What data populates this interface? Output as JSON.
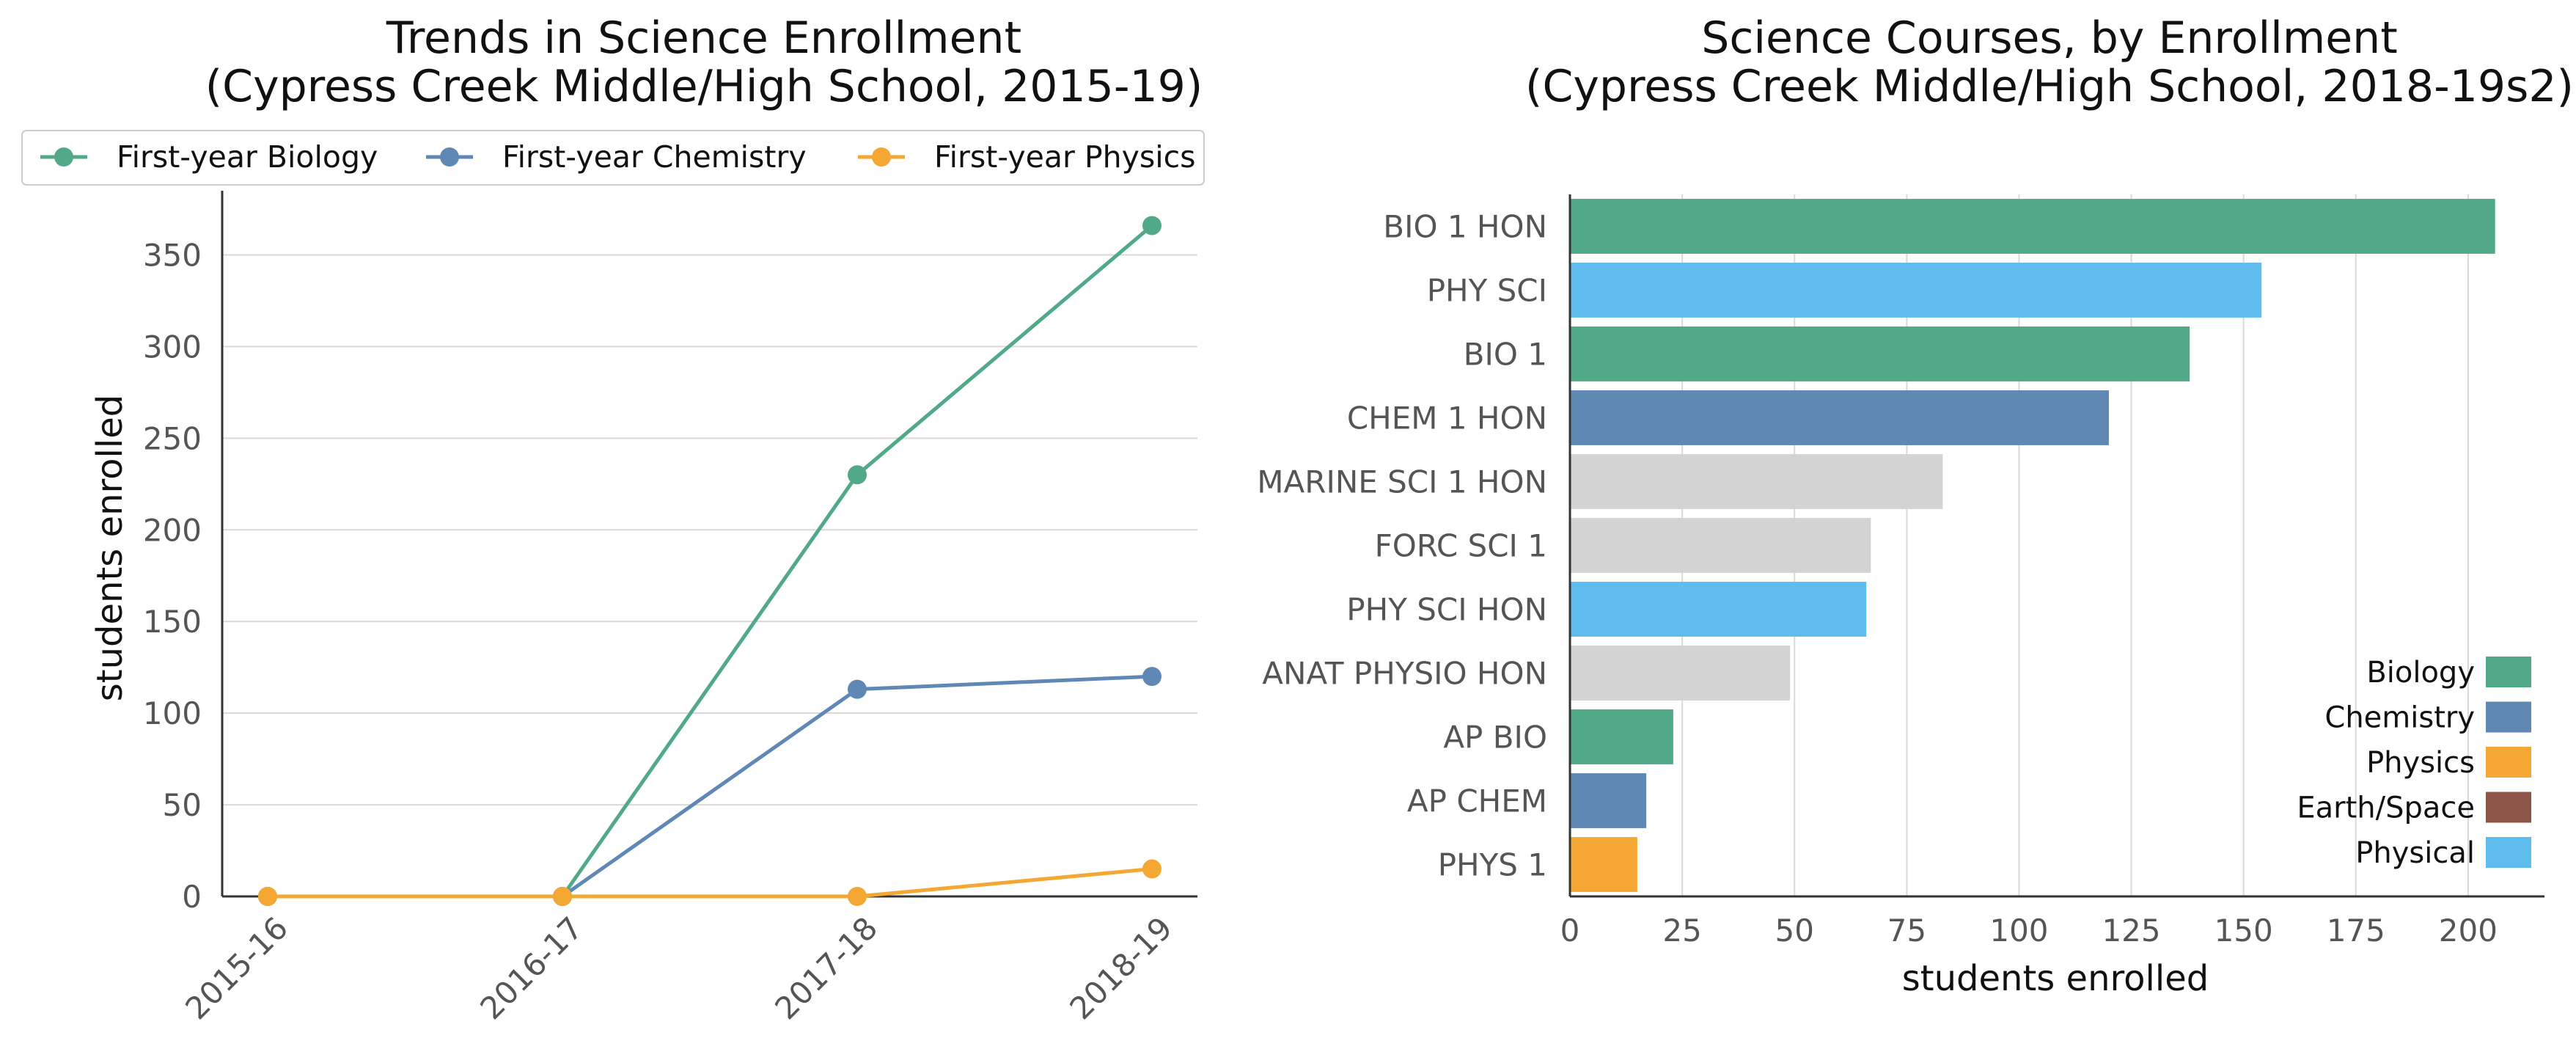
{
  "chart_data": [
    {
      "type": "line",
      "title": "Trends in Science Enrollment",
      "subtitle": "(Cypress Creek Middle/High School, 2015-19)",
      "xlabel": "",
      "ylabel": "students enrolled",
      "categories": [
        "2015-16",
        "2016-17",
        "2017-18",
        "2018-19"
      ],
      "ylim": [
        0,
        385
      ],
      "yticks": [
        0,
        50,
        100,
        150,
        200,
        250,
        300,
        350
      ],
      "grid": "horizontal",
      "legend": "top",
      "series": [
        {
          "name": "First-year Biology",
          "color": "#52a987",
          "values": [
            0,
            0,
            230,
            366
          ]
        },
        {
          "name": "First-year Chemistry",
          "color": "#6088b4",
          "values": [
            0,
            0,
            113,
            120
          ]
        },
        {
          "name": "First-year Physics",
          "color": "#f5a733",
          "values": [
            0,
            0,
            0,
            15
          ]
        }
      ]
    },
    {
      "type": "bar",
      "orientation": "horizontal",
      "title": "Science Courses, by Enrollment",
      "subtitle": "(Cypress Creek Middle/High School, 2018-19s2)",
      "xlabel": "students enrolled",
      "ylabel": "",
      "xlim": [
        0,
        217
      ],
      "xticks": [
        0,
        25,
        50,
        75,
        100,
        125,
        150,
        175,
        200
      ],
      "grid": "vertical",
      "legend": "lower-right",
      "categories": [
        "BIO 1 HON",
        "PHY SCI",
        "BIO 1",
        "CHEM 1 HON",
        "MARINE SCI 1 HON",
        "FORC SCI 1",
        "PHY SCI HON",
        "ANAT PHYSIO HON",
        "AP BIO",
        "AP CHEM",
        "PHYS 1"
      ],
      "values": [
        206,
        154,
        138,
        120,
        83,
        67,
        66,
        49,
        23,
        17,
        15
      ],
      "colors": [
        "#52a987",
        "#5fbdee",
        "#52a987",
        "#6088b4",
        "#d3d3d3",
        "#d3d3d3",
        "#5fbdee",
        "#d3d3d3",
        "#52a987",
        "#6088b4",
        "#f5a733"
      ],
      "legend_items": [
        {
          "name": "Biology",
          "color": "#52a987"
        },
        {
          "name": "Chemistry",
          "color": "#6088b4"
        },
        {
          "name": "Physics",
          "color": "#f5a733"
        },
        {
          "name": "Earth/Space",
          "color": "#8b5446"
        },
        {
          "name": "Physical",
          "color": "#5fbdee"
        }
      ]
    }
  ]
}
